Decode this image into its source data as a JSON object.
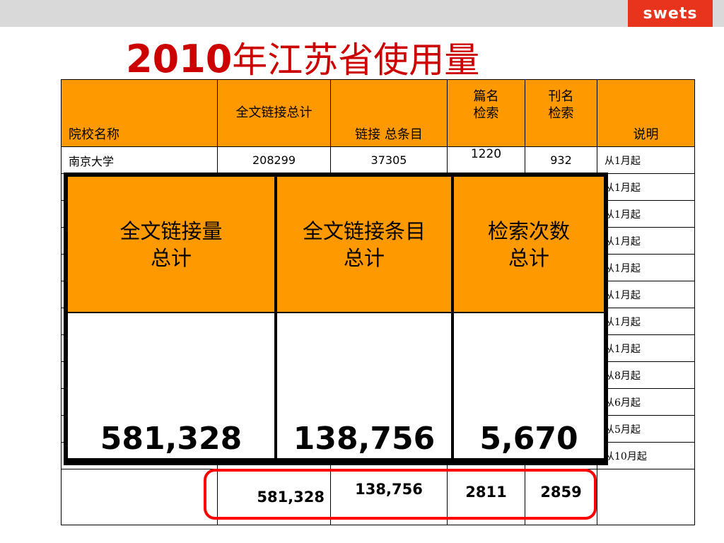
{
  "logo": "swets",
  "title": {
    "year": "2010",
    "text": "年江苏省使用量"
  },
  "table": {
    "headers": {
      "school": "院校名称",
      "fulltext_total": "全文链接总计",
      "link_items": "链接 总条目",
      "article_search": "篇名检索",
      "journal_search": "刊名检索",
      "note": "说明"
    },
    "first_row": {
      "school": "南京大学",
      "fulltext_total": "208299",
      "link_items": "37305",
      "article_search": "1220",
      "journal_search": "932",
      "note": "从1月起"
    },
    "notes": [
      "从1月起",
      "从1月起",
      "从1月起",
      "从1月起",
      "从1月起",
      "从1月起",
      "从1月起",
      "从8月起",
      "从6月起",
      "从5月起",
      "从10月起"
    ],
    "totals": {
      "fulltext_total": "581,328",
      "link_items": "138,756",
      "article_search": "2811",
      "journal_search": "2859"
    }
  },
  "overlay": {
    "col1_title_line1": "全文链接量",
    "col1_title_line2": "总计",
    "col2_title_line1": "全文链接条目",
    "col2_title_line2": "总计",
    "col3_title_line1": "检索次数",
    "col3_title_line2": "总计",
    "col1_value": "581,328",
    "col2_value": "138,756",
    "col3_value": "5,670"
  },
  "colors": {
    "accent": "#ff9900",
    "title": "#cc0000",
    "highlight": "#ff0000",
    "logo_bg": "#e8341c"
  }
}
